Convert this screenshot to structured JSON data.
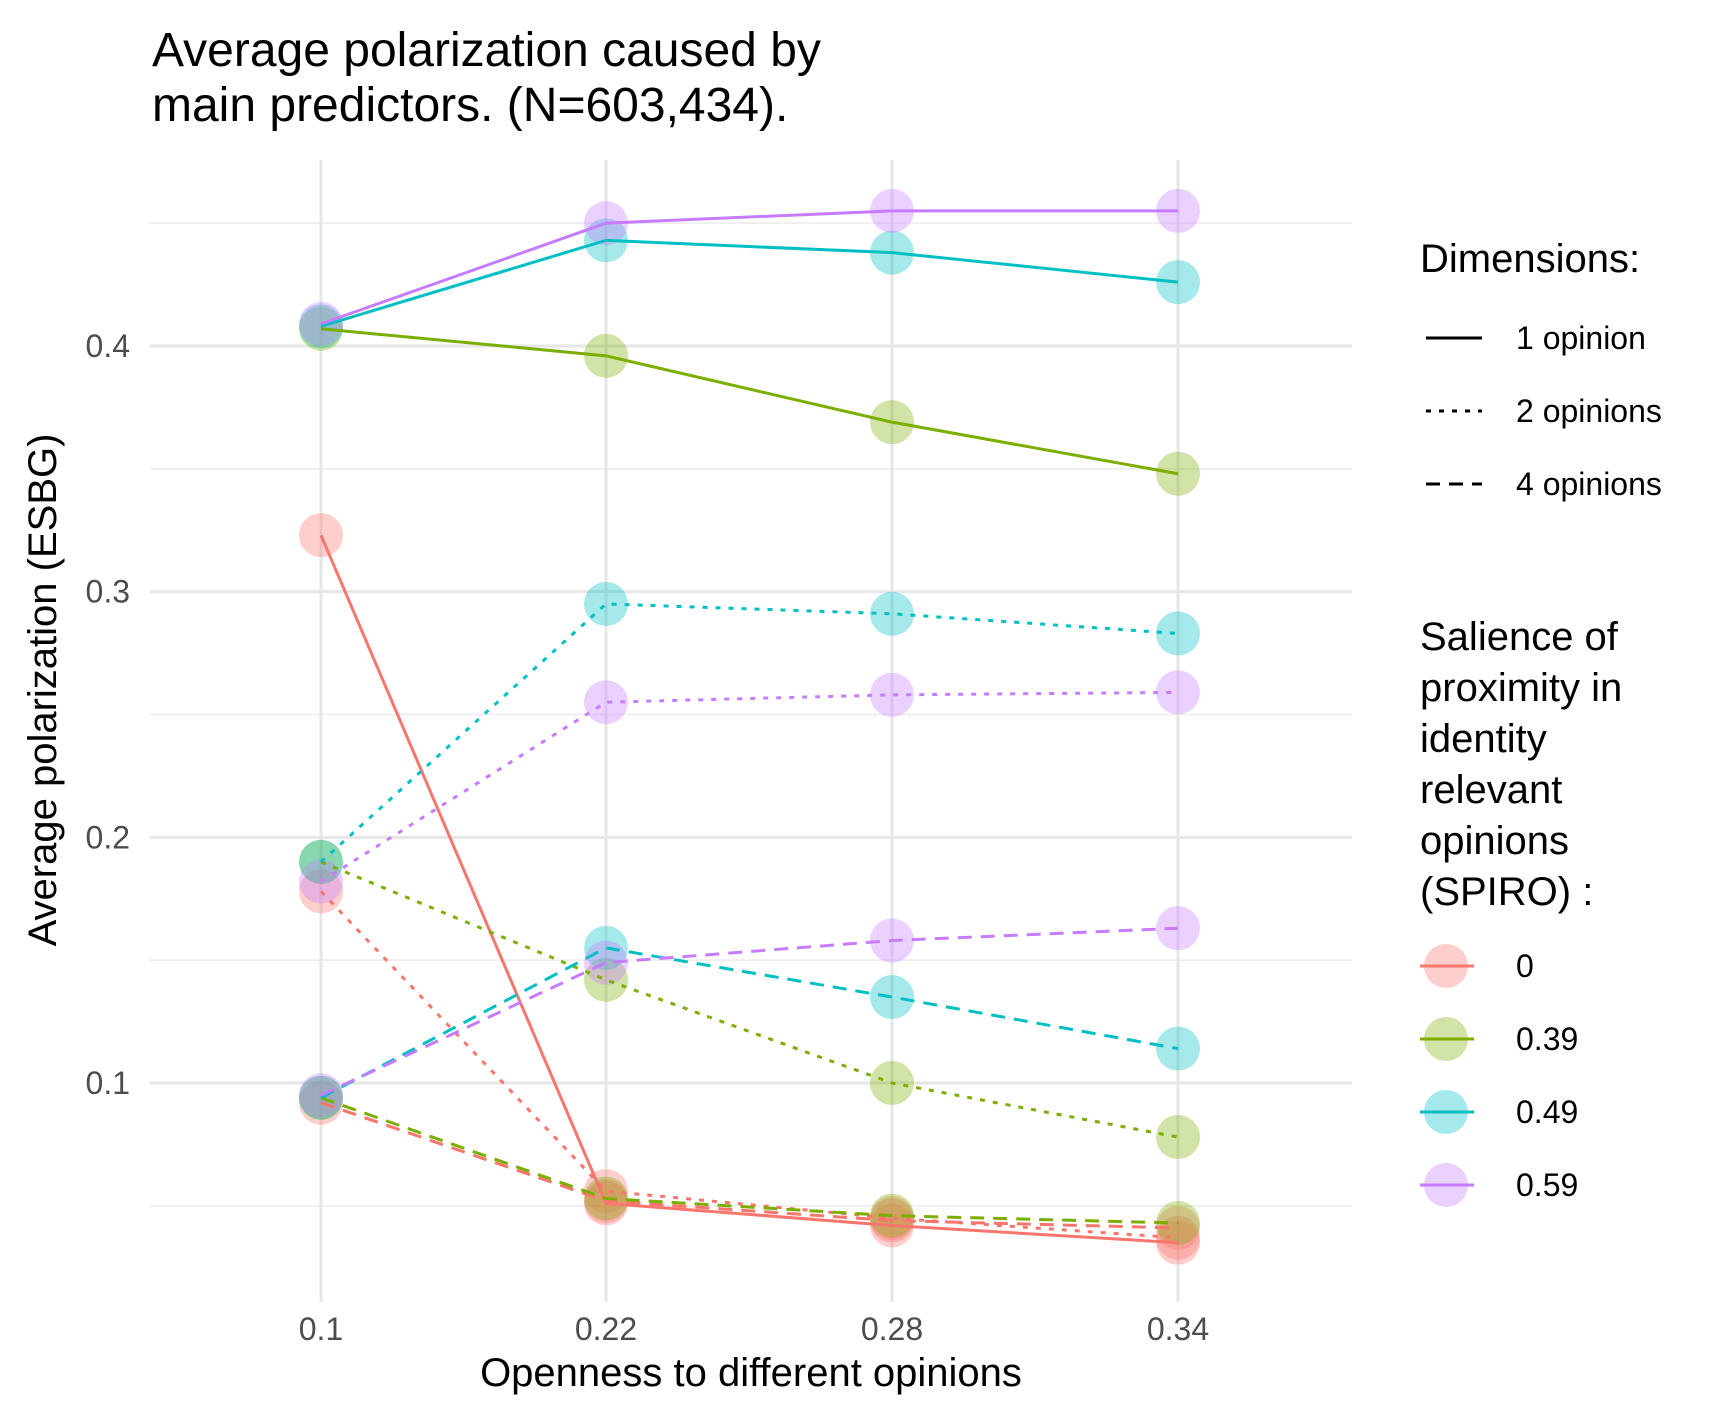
{
  "chart_data": {
    "type": "line",
    "title": [
      "Average polarization caused by",
      "main predictors. (N=603,434)."
    ],
    "xlabel": "Openness to different opinions",
    "ylabel": "Average polarization (ESBG)",
    "categories": [
      "0.1",
      "0.22",
      "0.28",
      "0.34"
    ],
    "y_ticks": [
      "0.1",
      "0.2",
      "0.3",
      "0.4"
    ],
    "ylim": [
      0.018,
      0.475
    ],
    "grid": true,
    "legend_position": "right",
    "legend_linetype": {
      "title": "Dimensions:",
      "entries": [
        {
          "label": "1 opinion",
          "dash": "solid"
        },
        {
          "label": "2 opinions",
          "dash": "dotted"
        },
        {
          "label": "4 opinions",
          "dash": "dashed"
        }
      ]
    },
    "legend_color": {
      "title": [
        "Salience of",
        "proximity in",
        "identity",
        "relevant",
        "opinions",
        "(SPIRO) :"
      ],
      "entries": [
        {
          "label": "0",
          "color": "#F8766D"
        },
        {
          "label": "0.39",
          "color": "#7CAE00"
        },
        {
          "label": "0.49",
          "color": "#00BFC4"
        },
        {
          "label": "0.59",
          "color": "#C77CFF"
        }
      ]
    },
    "series": [
      {
        "spiro": "0",
        "dimensions": "1 opinion",
        "values": [
          0.323,
          0.051,
          0.042,
          0.035
        ]
      },
      {
        "spiro": "0.39",
        "dimensions": "1 opinion",
        "values": [
          0.407,
          0.396,
          0.369,
          0.348
        ]
      },
      {
        "spiro": "0.49",
        "dimensions": "1 opinion",
        "values": [
          0.408,
          0.443,
          0.438,
          0.426
        ]
      },
      {
        "spiro": "0.59",
        "dimensions": "1 opinion",
        "values": [
          0.409,
          0.45,
          0.455,
          0.455
        ]
      },
      {
        "spiro": "0",
        "dimensions": "2 opinions",
        "values": [
          0.178,
          0.056,
          0.045,
          0.037
        ]
      },
      {
        "spiro": "0.39",
        "dimensions": "2 opinions",
        "values": [
          0.19,
          0.142,
          0.1,
          0.078
        ]
      },
      {
        "spiro": "0.49",
        "dimensions": "2 opinions",
        "values": [
          0.19,
          0.295,
          0.291,
          0.283
        ]
      },
      {
        "spiro": "0.59",
        "dimensions": "2 opinions",
        "values": [
          0.182,
          0.255,
          0.258,
          0.259
        ]
      },
      {
        "spiro": "0",
        "dimensions": "4 opinions",
        "values": [
          0.092,
          0.052,
          0.044,
          0.041
        ]
      },
      {
        "spiro": "0.39",
        "dimensions": "4 opinions",
        "values": [
          0.094,
          0.053,
          0.046,
          0.043
        ]
      },
      {
        "spiro": "0.49",
        "dimensions": "4 opinions",
        "values": [
          0.094,
          0.155,
          0.135,
          0.114
        ]
      },
      {
        "spiro": "0.59",
        "dimensions": "4 opinions",
        "values": [
          0.095,
          0.149,
          0.158,
          0.163
        ]
      }
    ]
  }
}
